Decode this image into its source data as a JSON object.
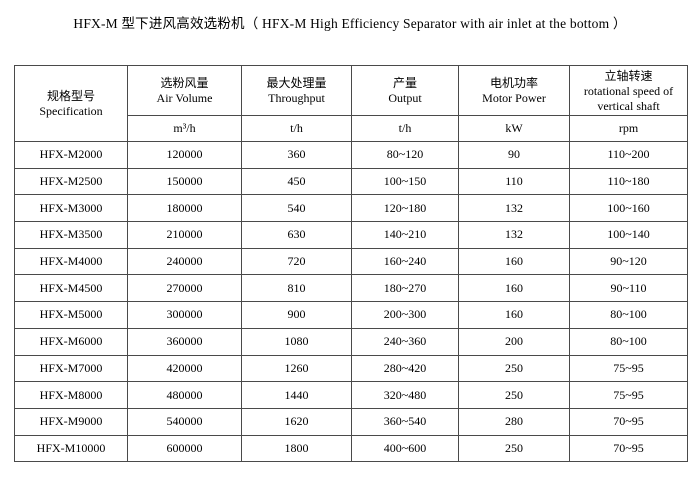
{
  "title": "HFX-M 型下进风高效选粉机（ HFX-M High Efficiency Separator with air inlet at the bottom ）",
  "table": {
    "columns": [
      {
        "zh": "规格型号",
        "en": "Specification"
      },
      {
        "zh": "选粉风量",
        "en": "Air Volume",
        "unit": "m³/h"
      },
      {
        "zh": "最大处理量",
        "en": "Throughput",
        "unit": "t/h"
      },
      {
        "zh": "产量",
        "en": "Output",
        "unit": "t/h"
      },
      {
        "zh": "电机功率",
        "en": "Motor Power",
        "unit": "kW"
      },
      {
        "zh": "立轴转速",
        "en": "rotational speed of vertical shaft",
        "unit": "rpm"
      }
    ],
    "rows": [
      [
        "HFX-M2000",
        "120000",
        "360",
        "80~120",
        "90",
        "110~200"
      ],
      [
        "HFX-M2500",
        "150000",
        "450",
        "100~150",
        "110",
        "110~180"
      ],
      [
        "HFX-M3000",
        "180000",
        "540",
        "120~180",
        "132",
        "100~160"
      ],
      [
        "HFX-M3500",
        "210000",
        "630",
        "140~210",
        "132",
        "100~140"
      ],
      [
        "HFX-M4000",
        "240000",
        "720",
        "160~240",
        "160",
        "90~120"
      ],
      [
        "HFX-M4500",
        "270000",
        "810",
        "180~270",
        "160",
        "90~110"
      ],
      [
        "HFX-M5000",
        "300000",
        "900",
        "200~300",
        "160",
        "80~100"
      ],
      [
        "HFX-M6000",
        "360000",
        "1080",
        "240~360",
        "200",
        "80~100"
      ],
      [
        "HFX-M7000",
        "420000",
        "1260",
        "280~420",
        "250",
        "75~95"
      ],
      [
        "HFX-M8000",
        "480000",
        "1440",
        "320~480",
        "250",
        "75~95"
      ],
      [
        "HFX-M9000",
        "540000",
        "1620",
        "360~540",
        "280",
        "70~95"
      ],
      [
        "HFX-M10000",
        "600000",
        "1800",
        "400~600",
        "250",
        "70~95"
      ]
    ]
  },
  "colors": {
    "background": "#ffffff",
    "text": "#000000",
    "border": "#4a4a4a"
  }
}
